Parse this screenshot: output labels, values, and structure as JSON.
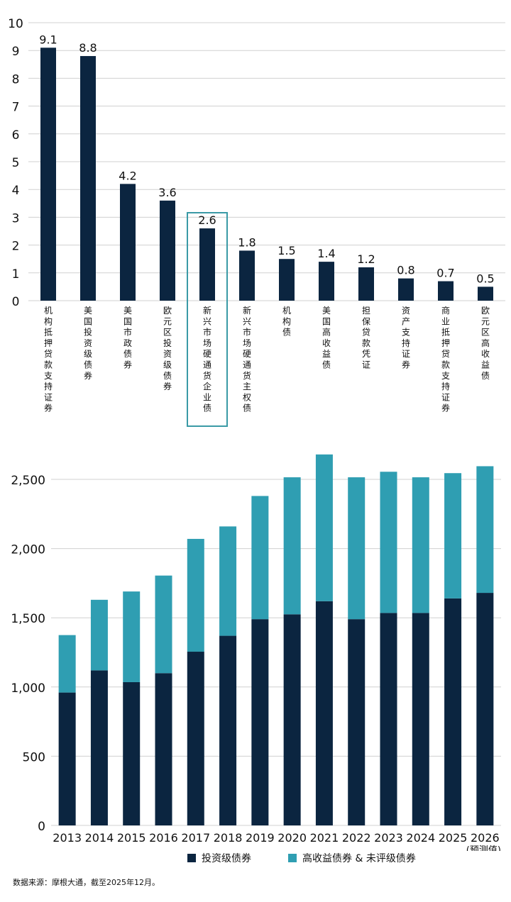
{
  "chart_data": [
    {
      "type": "bar",
      "categories": [
        "机构抵押贷款支持证券",
        "美国投资级债券",
        "美国市政债券",
        "欧元区投资级债券",
        "新兴市场硬通货企业债",
        "新兴市场硬通货主权债",
        "机构债",
        "美国高收益债",
        "担保贷款凭证",
        "资产支持证券",
        "商业抵押贷款支持证券",
        "欧元区高收益债"
      ],
      "values": [
        9.1,
        8.8,
        4.2,
        3.6,
        2.6,
        1.8,
        1.5,
        1.4,
        1.2,
        0.8,
        0.7,
        0.5
      ],
      "value_labels": [
        "9.1",
        "8.8",
        "4.2",
        "3.6",
        "2.6",
        "1.8",
        "1.5",
        "1.4",
        "1.2",
        "0.8",
        "0.7",
        "0.5"
      ],
      "yticks": [
        "0",
        "1",
        "2",
        "3",
        "4",
        "5",
        "6",
        "7",
        "8",
        "9",
        "10"
      ],
      "ylim": [
        0,
        10
      ],
      "highlighted_category": "新兴市场硬通货企业债",
      "colors": {
        "bar": "#0b2540",
        "highlight_box": "#3a9aa6",
        "grid": "#d0d0d0"
      }
    },
    {
      "type": "bar",
      "stacked": true,
      "categories": [
        "2013",
        "2014",
        "2015",
        "2016",
        "2017",
        "2018",
        "2019",
        "2020",
        "2021",
        "2022",
        "2023",
        "2024",
        "2025",
        "2026"
      ],
      "category_note": "(预测值)",
      "series": [
        {
          "name": "投资级债券",
          "values": [
            960,
            1120,
            1035,
            1100,
            1255,
            1370,
            1490,
            1525,
            1620,
            1490,
            1535,
            1535,
            1640,
            1680
          ],
          "color": "#0b2540"
        },
        {
          "name": "高收益债券 & 未评级债券",
          "values": [
            415,
            510,
            655,
            705,
            815,
            790,
            890,
            990,
            1060,
            1025,
            1020,
            980,
            905,
            915
          ],
          "color": "#2f9eb2"
        }
      ],
      "yticks": [
        "0",
        "500",
        "1,000",
        "1,500",
        "2,000",
        "2,500"
      ],
      "ylim": [
        0,
        2500
      ],
      "grid": true,
      "legend_position": "bottom"
    }
  ],
  "source_text": "数据来源：摩根大通，截至2025年12月。"
}
